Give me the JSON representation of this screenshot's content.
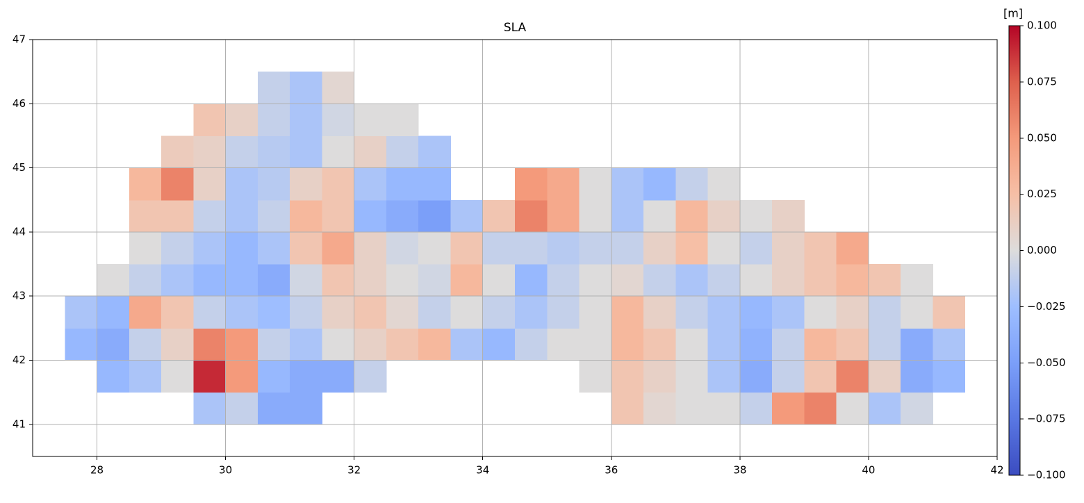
{
  "chart_data": {
    "type": "heatmap",
    "title": "SLA",
    "colorbar_label": "[m]",
    "x": [
      27.75,
      28.25,
      28.75,
      29.25,
      29.75,
      30.25,
      30.75,
      31.25,
      31.75,
      32.25,
      32.75,
      33.25,
      33.75,
      34.25,
      34.75,
      35.25,
      35.75,
      36.25,
      36.75,
      37.25,
      37.75,
      38.25,
      38.75,
      39.25,
      39.75,
      40.25,
      40.75,
      41.25,
      41.75
    ],
    "y": [
      41.25,
      41.75,
      42.25,
      42.75,
      43.25,
      43.75,
      44.25,
      44.75,
      45.25,
      45.75,
      46.25
    ],
    "z": [
      [
        null,
        null,
        null,
        null,
        -0.02,
        -0.01,
        -0.04,
        -0.04,
        null,
        null,
        null,
        null,
        null,
        null,
        null,
        null,
        null,
        0.02,
        0.005,
        0,
        0,
        -0.01,
        0.05,
        0.06,
        0,
        -0.02,
        -0.005,
        null,
        null
      ],
      [
        null,
        -0.03,
        -0.02,
        0,
        0.09,
        0.05,
        -0.03,
        -0.04,
        -0.04,
        -0.01,
        null,
        null,
        null,
        null,
        null,
        null,
        0,
        0.02,
        0.01,
        0,
        -0.02,
        -0.04,
        -0.01,
        0.02,
        0.06,
        0.01,
        -0.04,
        -0.03,
        null
      ],
      [
        -0.03,
        -0.04,
        -0.01,
        0.01,
        0.06,
        0.05,
        -0.01,
        -0.02,
        0,
        0.01,
        0.02,
        0.03,
        -0.02,
        -0.03,
        -0.01,
        0,
        0,
        0.03,
        0.02,
        0,
        -0.02,
        -0.035,
        -0.01,
        0.03,
        0.02,
        -0.01,
        -0.04,
        -0.02,
        null
      ],
      [
        -0.02,
        -0.03,
        0.04,
        0.02,
        -0.01,
        -0.02,
        -0.025,
        -0.01,
        0.01,
        0.02,
        0.005,
        -0.01,
        0,
        -0.01,
        -0.02,
        -0.01,
        0,
        0.03,
        0.01,
        -0.01,
        -0.02,
        -0.03,
        -0.02,
        0,
        0.01,
        -0.01,
        0,
        0.02,
        null
      ],
      [
        null,
        0,
        -0.01,
        -0.02,
        -0.03,
        -0.03,
        -0.04,
        -0.005,
        0.02,
        0.01,
        0,
        -0.005,
        0.03,
        0,
        -0.03,
        -0.01,
        0,
        0.005,
        -0.01,
        -0.02,
        -0.01,
        0,
        0.01,
        0.02,
        0.03,
        0.02,
        0,
        null,
        null
      ],
      [
        null,
        null,
        0,
        -0.01,
        -0.02,
        -0.03,
        -0.02,
        0.02,
        0.04,
        0.01,
        -0.005,
        0,
        0.02,
        -0.01,
        -0.01,
        -0.015,
        -0.01,
        -0.01,
        0.01,
        0.025,
        0,
        -0.01,
        0.01,
        0.02,
        0.04,
        null,
        null,
        null,
        null
      ],
      [
        null,
        null,
        0.02,
        0.02,
        -0.01,
        -0.02,
        -0.01,
        0.03,
        0.02,
        -0.03,
        -0.04,
        -0.05,
        -0.02,
        0.02,
        0.06,
        0.04,
        0,
        -0.02,
        0,
        0.03,
        0.01,
        0,
        0.01,
        null,
        null,
        null,
        null,
        null,
        null
      ],
      [
        null,
        null,
        0.03,
        0.06,
        0.01,
        -0.02,
        -0.015,
        0.01,
        0.02,
        -0.02,
        -0.03,
        -0.03,
        null,
        null,
        0.05,
        0.04,
        0,
        -0.02,
        -0.03,
        -0.01,
        0,
        null,
        null,
        null,
        null,
        null,
        null,
        null,
        null
      ],
      [
        null,
        null,
        null,
        0.015,
        0.01,
        -0.01,
        -0.015,
        -0.02,
        0,
        0.01,
        -0.01,
        -0.02,
        null,
        null,
        null,
        null,
        null,
        null,
        null,
        null,
        null,
        null,
        null,
        null,
        null,
        null,
        null,
        null,
        null
      ],
      [
        null,
        null,
        null,
        null,
        0.02,
        0.01,
        -0.01,
        -0.02,
        -0.005,
        0,
        0,
        null,
        null,
        null,
        null,
        null,
        null,
        null,
        null,
        null,
        null,
        null,
        null,
        null,
        null,
        null,
        null,
        null,
        null
      ],
      [
        null,
        null,
        null,
        null,
        null,
        null,
        -0.01,
        -0.02,
        0.005,
        null,
        null,
        null,
        null,
        null,
        null,
        null,
        null,
        null,
        null,
        null,
        null,
        null,
        null,
        null,
        null,
        null,
        null,
        null,
        null
      ]
    ],
    "cell_size": [
      0.5,
      0.5
    ],
    "xlim": [
      27,
      42
    ],
    "ylim": [
      40.5,
      47
    ],
    "xticks": [
      28,
      30,
      32,
      34,
      36,
      38,
      40,
      42
    ],
    "yticks": [
      41,
      42,
      43,
      44,
      45,
      46,
      47
    ],
    "clim": [
      -0.1,
      0.1
    ],
    "cticks": [
      {
        "value": -0.1,
        "label": "−0.100"
      },
      {
        "value": -0.075,
        "label": "−0.075"
      },
      {
        "value": -0.05,
        "label": "−0.050"
      },
      {
        "value": -0.025,
        "label": "−0.025"
      },
      {
        "value": 0,
        "label": "0.000"
      },
      {
        "value": 0.025,
        "label": "0.025"
      },
      {
        "value": 0.05,
        "label": "0.050"
      },
      {
        "value": 0.075,
        "label": "0.075"
      },
      {
        "value": 0.1,
        "label": "0.100"
      }
    ],
    "colormap": [
      "#3b4cc0",
      "#5977e3",
      "#7b9ff9",
      "#9ebeff",
      "#dddcdc",
      "#f6bfa6",
      "#f49a7b",
      "#de604d",
      "#b40426"
    ],
    "grid": true
  }
}
